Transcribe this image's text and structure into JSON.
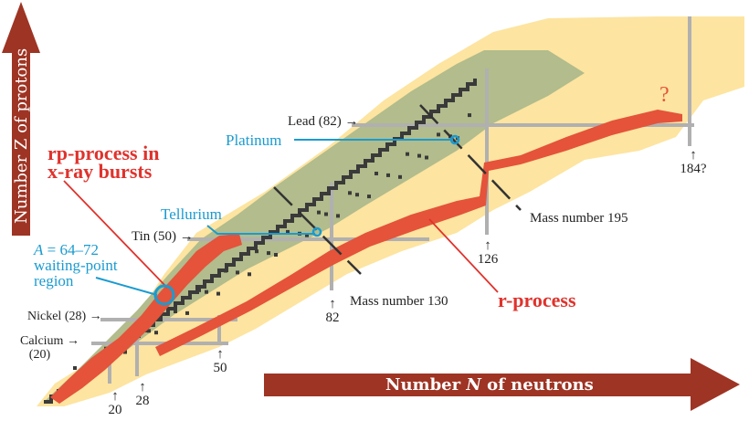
{
  "axes": {
    "y_label": "Number Z of protons",
    "x_label_prefix": "Number ",
    "x_label_var": "N",
    "x_label_suffix": " of neutrons"
  },
  "colors": {
    "arrow": "#9e3424",
    "unknown_region": "#fde4a0",
    "stable_region": "#b2bc8c",
    "stable_nuclei": "#3a3a3a",
    "process_path": "#e4533a",
    "magic_lines": "#b0b0b0",
    "annotation_blue": "#1a9bd0",
    "annotation_red": "#e0322c"
  },
  "proton_magic_labels": [
    {
      "name": "Calcium",
      "value": "(20)"
    },
    {
      "name": "Nickel (28)"
    },
    {
      "name": "Tin (50)"
    },
    {
      "name": "Lead (82)"
    }
  ],
  "neutron_magic_labels": [
    "20",
    "28",
    "50",
    "82",
    "126",
    "184?"
  ],
  "element_callouts": {
    "tellurium": "Tellurium",
    "platinum": "Platinum"
  },
  "waiting_point": {
    "line1_var": "A",
    "line1_rest": " = 64–72",
    "line2": "waiting-point",
    "line3": "region"
  },
  "process_labels": {
    "rp_line1": "rp-process in",
    "rp_line2": "x-ray bursts",
    "r_process": "r-process",
    "unknown_end": "?"
  },
  "mass_number_labels": {
    "m130": "Mass number 130",
    "m195": "Mass number 195"
  }
}
